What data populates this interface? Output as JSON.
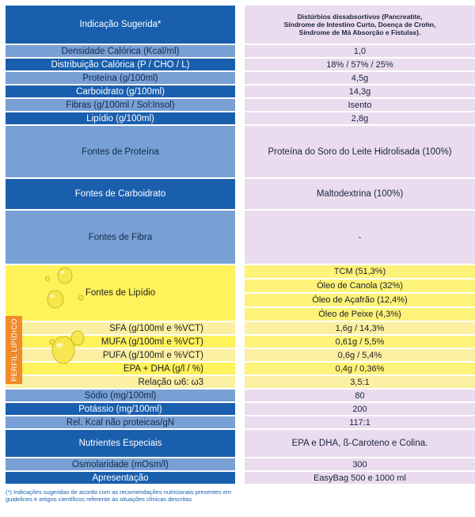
{
  "rows": [
    {
      "label": "Indicação Sugerida*",
      "value_lines": [
        "Distúrbios dissabsortivos (Pancreatite,",
        "Síndrome de Intestino Curto, Doença de Crohn,",
        "Síndrome de Má Absorção e Fístulas)."
      ]
    },
    {
      "label": "Densidade Calórica (Kcal/ml)",
      "value": "1,0"
    },
    {
      "label": "Distribuição Calórica (P / CHO / L)",
      "value": "18% / 57% / 25%"
    },
    {
      "label": "Proteína  (g/100ml)",
      "value": "4,5g"
    },
    {
      "label": "Carboidrato  (g/100ml)",
      "value": "14,3g"
    },
    {
      "label": "Fibras (g/100ml / Sol:Insol)",
      "value": "Isento"
    },
    {
      "label": "Lipídio  (g/100ml)",
      "value": "2,8g"
    },
    {
      "label": "Fontes de Proteína",
      "value": "Proteína do Soro do Leite Hidrolisada (100%)"
    },
    {
      "label": "Fontes de Carboidrato",
      "value": "Maltodextrina (100%)"
    },
    {
      "label": "Fontes de Fibra",
      "value": "-"
    }
  ],
  "lipid_sources": {
    "label": "Fontes de Lipídio",
    "values": [
      "TCM (51,3%)",
      "Óleo de Canola (32%)",
      "Óleo de Açafrão (12,4%)",
      "Óleo de Peixe (4,3%)"
    ]
  },
  "lipid_profile": {
    "side_label": "PERFIL LIPÍDICO",
    "rows": [
      {
        "label": "SFA (g/100ml e %VCT)",
        "value": "1,6g / 14,3%"
      },
      {
        "label": "MUFA (g/100ml e %VCT)",
        "value": "0,61g / 5,5%"
      },
      {
        "label": "PUFA (g/100ml e %VCT)",
        "value": "0,6g / 5,4%"
      },
      {
        "label": "EPA + DHA (g/l / %)",
        "value": "0,4g / 0,36%"
      },
      {
        "label": "Relação   ω6: ω3",
        "value": "3,5:1"
      }
    ]
  },
  "rows_after": [
    {
      "label": "Sódio (mg/100ml)",
      "value": "80"
    },
    {
      "label": "Potássio (mg/100ml)",
      "value": "200"
    },
    {
      "label": "Rel. Kcal não proteicas/gN",
      "value": "117:1"
    },
    {
      "label": "Nutrientes Especiais",
      "value": "EPA e DHA,   ß-Caroteno e Colina."
    },
    {
      "label": "Osmolaridade (mOsm/l)",
      "value": "300"
    },
    {
      "label": "Apresentação",
      "value": "EasyBag 500 e 1000 ml"
    }
  ],
  "footnote": "(*) Indicações sugeridas de acordo com as recomendações nutricionais presentes em guidelines e artigos científicos referente às situações clínicas descritas",
  "colors": {
    "dark_blue": "#1a5fae",
    "light_blue": "#78a0d4",
    "pink": "#eadcee",
    "yellow": "#fff25a",
    "orange": "#f08a2a"
  }
}
